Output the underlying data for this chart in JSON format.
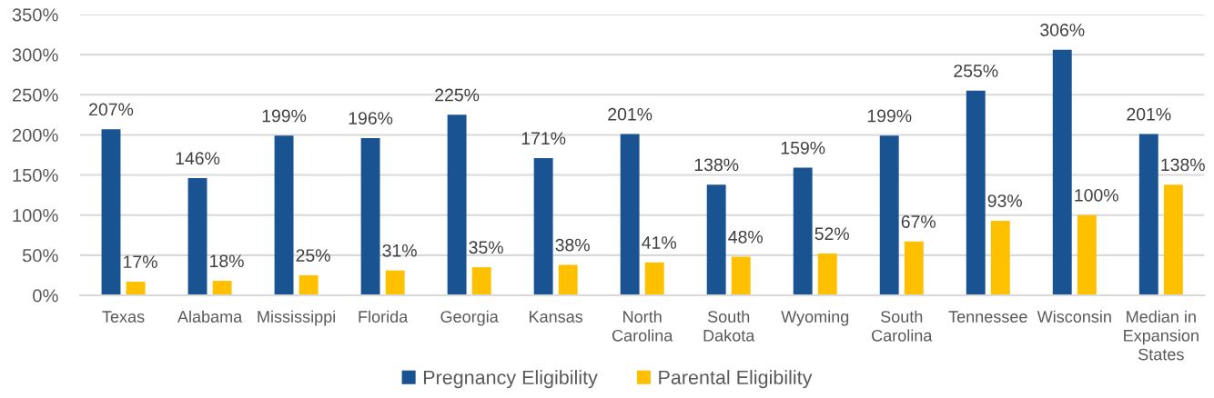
{
  "chart_data": {
    "type": "bar",
    "categories": [
      "Texas",
      "Alabama",
      "Mississippi",
      "Florida",
      "Georgia",
      "Kansas",
      "North Carolina",
      "South Dakota",
      "Wyoming",
      "South Carolina",
      "Tennessee",
      "Wisconsin",
      "Median in Expansion States"
    ],
    "series": [
      {
        "name": "Pregnancy Eligibility",
        "color": "#1a5391",
        "values": [
          207,
          146,
          199,
          196,
          225,
          171,
          201,
          138,
          159,
          199,
          255,
          306,
          201
        ],
        "value_labels": [
          "207%",
          "146%",
          "199%",
          "196%",
          "225%",
          "171%",
          "201%",
          "138%",
          "159%",
          "199%",
          "255%",
          "306%",
          "201%"
        ]
      },
      {
        "name": "Parental Eligibility",
        "color": "#ffc000",
        "values": [
          17,
          18,
          25,
          31,
          35,
          38,
          41,
          48,
          52,
          67,
          93,
          100,
          138
        ],
        "value_labels": [
          "17%",
          "18%",
          "25%",
          "31%",
          "35%",
          "38%",
          "41%",
          "48%",
          "52%",
          "67%",
          "93%",
          "100%",
          "138%"
        ]
      }
    ],
    "ylim": [
      0,
      350
    ],
    "yticks": [
      {
        "value": 0,
        "label": "0%"
      },
      {
        "value": 50,
        "label": "50%"
      },
      {
        "value": 100,
        "label": "100%"
      },
      {
        "value": 150,
        "label": "150%"
      },
      {
        "value": 200,
        "label": "200%"
      },
      {
        "value": 250,
        "label": "250%"
      },
      {
        "value": 300,
        "label": "300%"
      },
      {
        "value": 350,
        "label": "350%"
      }
    ],
    "grid": "y",
    "legend": "bottom"
  }
}
